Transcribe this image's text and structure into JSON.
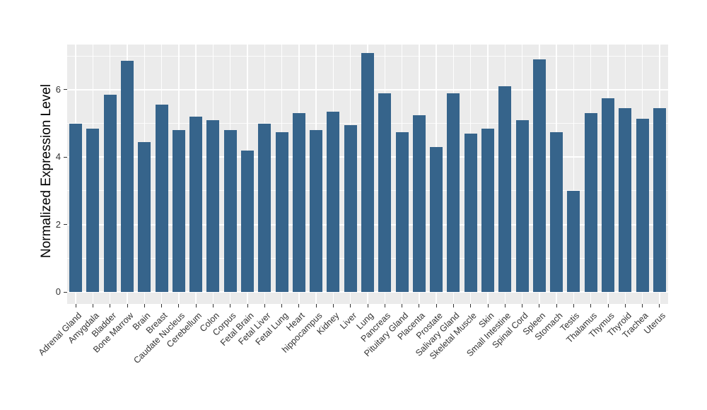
{
  "chart_data": {
    "type": "bar",
    "title": "",
    "xlabel": "",
    "ylabel": "Normalized Expression Level",
    "ylim": [
      0,
      7.35
    ],
    "yticks": [
      0,
      2,
      4,
      6
    ],
    "yminor": [
      1,
      3,
      5,
      7
    ],
    "grid": "on",
    "legend": "none",
    "colors": {
      "bar": "#36648B",
      "panel_background": "#EBEBEB",
      "gridline": "#FFFFFF",
      "axis_text": "#333333",
      "axis_title": "#000000",
      "outer_background": "#FFFFFF"
    },
    "categories": [
      "Adrenal Gland",
      "Amygdala",
      "Bladder",
      "Bone Marrow",
      "Brain",
      "Breast",
      "Caudate Nucleus",
      "Cerebellum",
      "Colon",
      "Corpus",
      "Fetal Brain",
      "Fetal Liver",
      "Fetal Lung",
      "Heart",
      "hippocampus",
      "Kidney",
      "Liver",
      "Lung",
      "Pancreas",
      "Pituitary Gland",
      "Placenta",
      "Prostate",
      "Salivary Gland",
      "Skeletal Muscle",
      "Skin",
      "Small Intestine",
      "Spinal Cord",
      "Spleen",
      "Stomach",
      "Testis",
      "Thalamus",
      "Thymus",
      "Thyroid",
      "Trachea",
      "Uterus"
    ],
    "values": [
      5.0,
      4.85,
      5.85,
      6.85,
      4.45,
      5.55,
      4.8,
      5.2,
      5.1,
      4.8,
      4.2,
      5.0,
      4.75,
      5.3,
      4.8,
      5.35,
      4.95,
      7.1,
      5.9,
      4.75,
      5.25,
      4.3,
      5.9,
      4.7,
      4.85,
      6.1,
      5.1,
      6.9,
      4.75,
      3.0,
      5.3,
      5.75,
      5.45,
      5.15,
      5.45
    ]
  }
}
